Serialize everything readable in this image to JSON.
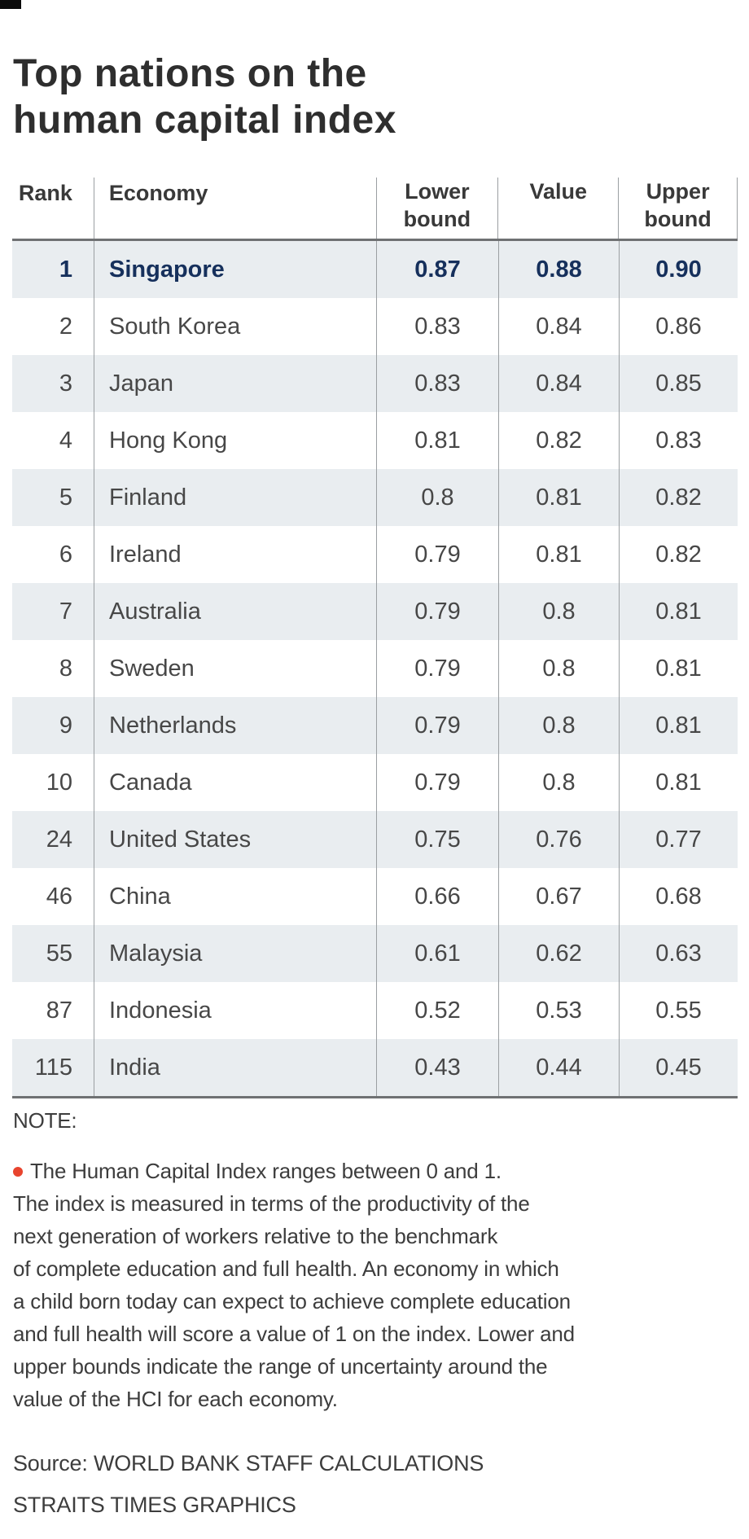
{
  "title": {
    "line1": "Top nations on the",
    "line2": "human capital index"
  },
  "chart_data": {
    "type": "table",
    "title": "Top nations on the human capital index",
    "columns": [
      "Rank",
      "Economy",
      "Lower bound",
      "Value",
      "Upper bound"
    ],
    "rows": [
      [
        "1",
        "Singapore",
        "0.87",
        "0.88",
        "0.90"
      ],
      [
        "2",
        "South Korea",
        "0.83",
        "0.84",
        "0.86"
      ],
      [
        "3",
        "Japan",
        "0.83",
        "0.84",
        "0.85"
      ],
      [
        "4",
        "Hong Kong",
        "0.81",
        "0.82",
        "0.83"
      ],
      [
        "5",
        "Finland",
        "0.8",
        "0.81",
        "0.82"
      ],
      [
        "6",
        "Ireland",
        "0.79",
        "0.81",
        "0.82"
      ],
      [
        "7",
        "Australia",
        "0.79",
        "0.8",
        "0.81"
      ],
      [
        "8",
        "Sweden",
        "0.79",
        "0.8",
        "0.81"
      ],
      [
        "9",
        "Netherlands",
        "0.79",
        "0.8",
        "0.81"
      ],
      [
        "10",
        "Canada",
        "0.79",
        "0.8",
        "0.81"
      ],
      [
        "24",
        "United States",
        "0.75",
        "0.76",
        "0.77"
      ],
      [
        "46",
        "China",
        "0.66",
        "0.67",
        "0.68"
      ],
      [
        "55",
        "Malaysia",
        "0.61",
        "0.62",
        "0.63"
      ],
      [
        "87",
        "Indonesia",
        "0.52",
        "0.53",
        "0.55"
      ],
      [
        "115",
        "India",
        "0.43",
        "0.44",
        "0.45"
      ]
    ],
    "highlighted_row_economy": "Singapore",
    "shaded_row_indices": [
      0,
      2,
      4,
      6,
      8,
      10,
      12,
      14
    ]
  },
  "note": {
    "label": "NOTE:",
    "bullet_icon": "orange-dot",
    "lines": [
      "The Human Capital Index ranges between 0 and 1.",
      "The index is measured in terms of the productivity of the",
      "next generation of workers relative to the benchmark",
      "of complete education and full health. An economy in which",
      "a child born today can expect to achieve complete education",
      "and full health will score a value of 1 on the index. Lower and",
      "upper bounds indicate the range of uncertainty around the",
      "value of the HCI for each economy."
    ]
  },
  "source": {
    "line1": "Source: WORLD BANK STAFF CALCULATIONS",
    "line2": "STRAITS TIMES GRAPHICS"
  },
  "colors": {
    "highlight_text": "#16305c",
    "row_shade": "#e9edf0",
    "bullet": "#e8442e",
    "rule_dark": "#6f7173",
    "rule_light": "#9b9fa2"
  }
}
